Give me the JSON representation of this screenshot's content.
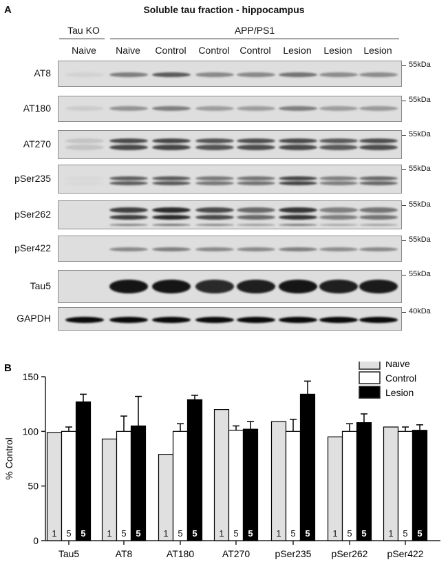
{
  "panel_a": {
    "letter": "A",
    "title": "Soluble tau fraction - hippocampus",
    "group_left": "Tau KO",
    "group_right": "APP/PS1",
    "lanes": [
      "Naive",
      "Naive",
      "Control",
      "Control",
      "Control",
      "Lesion",
      "Lesion",
      "Lesion"
    ],
    "blots": [
      {
        "label": "AT8",
        "marker": "55kDa"
      },
      {
        "label": "AT180",
        "marker": "55kDa"
      },
      {
        "label": "AT270",
        "marker": "55kDa"
      },
      {
        "label": "pSer235",
        "marker": "55kDa"
      },
      {
        "label": "pSer262",
        "marker": "55kDa"
      },
      {
        "label": "pSer422",
        "marker": "55kDa"
      },
      {
        "label": "Tau5",
        "marker": "55kDa"
      },
      {
        "label": "GAPDH",
        "marker": "40kDa"
      }
    ]
  },
  "chart_data": {
    "type": "bar",
    "panel_letter": "B",
    "ylabel": "% Control",
    "ylim": [
      0,
      150
    ],
    "yticks": [
      0,
      50,
      100,
      150
    ],
    "categories": [
      "Tau5",
      "AT8",
      "AT180",
      "AT270",
      "pSer235",
      "pSer262",
      "pSer422"
    ],
    "legend_position": "top-right",
    "series": [
      {
        "name": "Naive",
        "color": "#e0e0e0",
        "values": [
          99,
          93,
          79,
          120,
          109,
          95,
          104
        ],
        "errors": [
          0,
          0,
          0,
          0,
          0,
          0,
          0
        ],
        "n_labels": [
          "1",
          "1",
          "1",
          "1",
          "1",
          "1",
          "1"
        ]
      },
      {
        "name": "Control",
        "color": "#ffffff",
        "values": [
          100,
          100,
          100,
          101,
          100,
          100,
          100
        ],
        "errors": [
          4,
          14,
          7,
          4,
          11,
          7,
          4
        ],
        "n_labels": [
          "5",
          "5",
          "5",
          "5",
          "5",
          "5",
          "5"
        ]
      },
      {
        "name": "Lesion",
        "color": "#000000",
        "values": [
          127,
          105,
          129,
          102,
          134,
          108,
          101
        ],
        "errors": [
          7,
          27,
          4,
          7,
          12,
          8,
          5
        ],
        "n_labels": [
          "5",
          "5",
          "5",
          "5",
          "5",
          "5",
          "5"
        ]
      }
    ]
  }
}
